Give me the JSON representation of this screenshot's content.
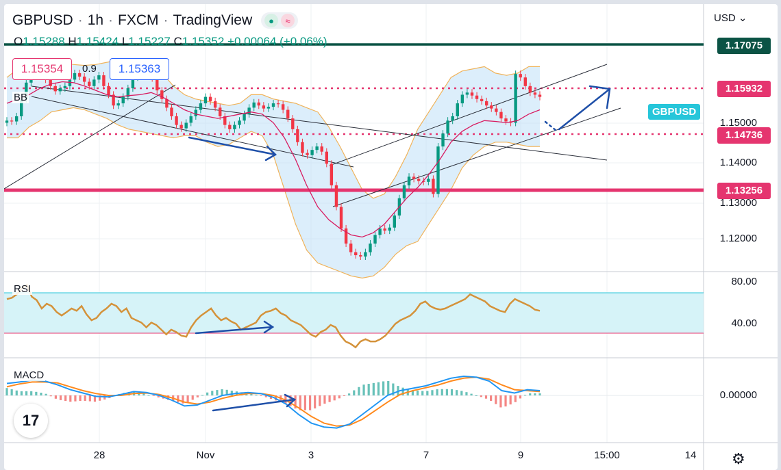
{
  "header": {
    "symbol": "GBPUSD",
    "interval": "1h",
    "exchange": "FXCM",
    "platform": "TradingView",
    "ohlc": {
      "o_label": "O",
      "o": "1.15288",
      "h_label": "H",
      "h": "1.15424",
      "l_label": "L",
      "l": "1.15227",
      "c_label": "C",
      "c": "1.15352",
      "change": "+0.00064 (+0.06%)"
    }
  },
  "quote": {
    "sell": "1.15354",
    "spread": "0.9",
    "buy": "1.15363"
  },
  "panels": {
    "main_indicator": "BB",
    "rsi": "RSI",
    "macd": "MACD"
  },
  "price_axis": {
    "currency": "USD",
    "ticks": [
      "1.15000",
      "1.14000",
      "1.13000",
      "1.12000"
    ]
  },
  "rsi_axis": {
    "ticks": [
      "80.00",
      "40.00"
    ]
  },
  "macd_axis": {
    "ticks": [
      "0.00000"
    ]
  },
  "time_axis": {
    "ticks": [
      "28",
      "Nov",
      "3",
      "7",
      "9",
      "15:00",
      "14"
    ]
  },
  "levels": {
    "resistance_top": "1.17075",
    "resistance": "1.15932",
    "support": "1.14736",
    "support_major": "1.13256"
  },
  "symbol_tag": "GBPUSD",
  "logo_text": "17",
  "colors": {
    "up": "#089981",
    "down": "#f23645",
    "bb_fill": "#bfe0f7",
    "bb_band": "#f0b35a",
    "bb_mid": "#d81b60",
    "level_pink": "#e5356f",
    "level_green": "#0b5345",
    "arrow": "#1e4fa8",
    "rsi": "#d4923a",
    "rsi_band": "#d6f3f8",
    "macd": "#2196f3",
    "signal": "#ff8a1e"
  },
  "chart_data": {
    "type": "candlestick",
    "title": "GBPUSD · 1h · FXCM",
    "ylim": [
      1.113,
      1.175
    ],
    "price_closes": [
      1.148,
      1.1478,
      1.149,
      1.153,
      1.1568,
      1.1585,
      1.159,
      1.1588,
      1.1575,
      1.156,
      1.1548,
      1.1555,
      1.156,
      1.1575,
      1.159,
      1.1582,
      1.157,
      1.156,
      1.1575,
      1.1585,
      1.156,
      1.154,
      1.1515,
      1.152,
      1.1535,
      1.1555,
      1.158,
      1.159,
      1.1592,
      1.1587,
      1.1578,
      1.155,
      1.153,
      1.151,
      1.149,
      1.147,
      1.1462,
      1.1475,
      1.149,
      1.1505,
      1.152,
      1.1535,
      1.1525,
      1.151,
      1.149,
      1.147,
      1.146,
      1.147,
      1.148,
      1.1495,
      1.151,
      1.1522,
      1.1515,
      1.1508,
      1.1512,
      1.152,
      1.1518,
      1.1505,
      1.1485,
      1.146,
      1.143,
      1.1405,
      1.14,
      1.1412,
      1.142,
      1.1408,
      1.138,
      1.133,
      1.128,
      1.123,
      1.1195,
      1.1175,
      1.1168,
      1.1165,
      1.1175,
      1.1195,
      1.1215,
      1.123,
      1.1225,
      1.1232,
      1.126,
      1.13,
      1.133,
      1.135,
      1.1345,
      1.134,
      1.1338,
      1.1345,
      1.131,
      1.142,
      1.145,
      1.148,
      1.149,
      1.152,
      1.154,
      1.1545,
      1.1538,
      1.153,
      1.1525,
      1.1515,
      1.1508,
      1.15,
      1.1485,
      1.1478,
      1.1475,
      1.1588,
      1.158,
      1.156,
      1.1545,
      1.154,
      1.1535
    ],
    "bb_upper": [
      1.158,
      1.16,
      1.1615,
      1.162,
      1.162,
      1.1615,
      1.161,
      1.1608,
      1.161,
      1.1615,
      1.162,
      1.1615,
      1.1605,
      1.16,
      1.159,
      1.156,
      1.154,
      1.153,
      1.1525,
      1.152,
      1.1515,
      1.152,
      1.154,
      1.154,
      1.153,
      1.1525,
      1.152,
      1.151,
      1.15,
      1.1465,
      1.142,
      1.137,
      1.132,
      1.13,
      1.131,
      1.135,
      1.14,
      1.146,
      1.15,
      1.154,
      1.158,
      1.1595,
      1.16,
      1.1605,
      1.159,
      1.1585,
      1.159,
      1.1605,
      1.1605
    ],
    "bb_lower": [
      1.144,
      1.144,
      1.1465,
      1.148,
      1.15,
      1.1505,
      1.151,
      1.1505,
      1.1495,
      1.1485,
      1.147,
      1.146,
      1.1455,
      1.145,
      1.1445,
      1.144,
      1.1445,
      1.1445,
      1.143,
      1.142,
      1.1425,
      1.144,
      1.1455,
      1.1445,
      1.14,
      1.132,
      1.124,
      1.118,
      1.115,
      1.114,
      1.113,
      1.112,
      1.1115,
      1.112,
      1.114,
      1.117,
      1.119,
      1.12,
      1.124,
      1.128,
      1.132,
      1.137,
      1.14,
      1.142,
      1.143,
      1.143,
      1.1425,
      1.142,
      1.142
    ],
    "bb_mid": [
      1.152,
      1.153,
      1.154,
      1.1555,
      1.1565,
      1.157,
      1.1568,
      1.156,
      1.155,
      1.154,
      1.1535,
      1.1538,
      1.154,
      1.1545,
      1.1535,
      1.152,
      1.1505,
      1.1495,
      1.149,
      1.1485,
      1.149,
      1.1495,
      1.15,
      1.1495,
      1.1475,
      1.144,
      1.139,
      1.133,
      1.128,
      1.125,
      1.123,
      1.1215,
      1.121,
      1.122,
      1.124,
      1.127,
      1.13,
      1.1325,
      1.1355,
      1.139,
      1.143,
      1.1455,
      1.147,
      1.148,
      1.1478,
      1.1475,
      1.148,
      1.1495,
      1.1505
    ],
    "rsi_range": [
      20,
      80
    ],
    "rsi_band": [
      30,
      70
    ],
    "rsi_values": [
      66,
      67,
      70,
      75,
      78,
      68,
      65,
      58,
      62,
      60,
      55,
      52,
      55,
      58,
      56,
      60,
      53,
      48,
      50,
      55,
      58,
      62,
      60,
      55,
      58,
      50,
      48,
      46,
      42,
      46,
      44,
      40,
      36,
      40,
      38,
      35,
      34,
      42,
      48,
      52,
      55,
      58,
      52,
      48,
      50,
      47,
      45,
      40,
      42,
      44,
      46,
      52,
      55,
      56,
      58,
      54,
      52,
      48,
      46,
      44,
      40,
      36,
      34,
      38,
      40,
      44,
      42,
      35,
      30,
      28,
      25,
      30,
      32,
      30,
      30,
      32,
      35,
      40,
      45,
      48,
      50,
      52,
      56,
      62,
      64,
      60,
      58,
      57,
      58,
      60,
      62,
      64,
      66,
      70,
      68,
      66,
      64,
      60,
      58,
      56,
      55,
      62,
      66,
      64,
      62,
      60,
      57,
      56
    ],
    "macd_line": [
      0.0025,
      0.0028,
      0.0032,
      0.003,
      0.0022,
      0.0012,
      0.0005,
      -0.0002,
      -0.0003,
      0.0002,
      0.0008,
      0.0006,
      0.0,
      -0.001,
      -0.0022,
      -0.002,
      -0.001,
      0.0,
      0.0004,
      0.0006,
      0.0004,
      -0.0004,
      -0.0018,
      -0.004,
      -0.0058,
      -0.0066,
      -0.0068,
      -0.006,
      -0.004,
      -0.002,
      0.0,
      0.001,
      0.0015,
      0.002,
      0.0028,
      0.0036,
      0.004,
      0.0038,
      0.003,
      0.001,
      0.0005,
      0.0012,
      0.001
    ],
    "signal_line": [
      0.0018,
      0.0024,
      0.0028,
      0.0028,
      0.0026,
      0.0018,
      0.001,
      0.0004,
      0.0,
      0.0,
      0.0004,
      0.0005,
      0.0002,
      -0.0005,
      -0.0014,
      -0.0018,
      -0.0014,
      -0.0006,
      0.0,
      0.0004,
      0.0004,
      0.0,
      -0.001,
      -0.0026,
      -0.0044,
      -0.0058,
      -0.0064,
      -0.0062,
      -0.005,
      -0.0032,
      -0.0014,
      0.0002,
      0.001,
      0.0016,
      0.0022,
      0.003,
      0.0036,
      0.0038,
      0.0034,
      0.0022,
      0.0012,
      0.001,
      0.0008
    ]
  }
}
